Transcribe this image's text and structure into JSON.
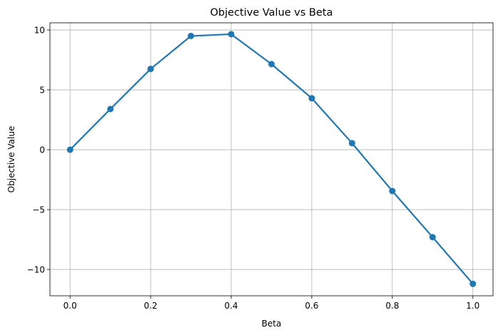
{
  "chart_data": {
    "type": "line",
    "title": "Objective Value vs Beta",
    "xlabel": "Beta",
    "ylabel": "Objective Value",
    "xlim": [
      -0.05,
      1.05
    ],
    "ylim": [
      -12.2,
      10.6
    ],
    "xticks": [
      0.0,
      0.2,
      0.4,
      0.6,
      0.8,
      1.0
    ],
    "xtick_labels": [
      "0.0",
      "0.2",
      "0.4",
      "0.6",
      "0.8",
      "1.0"
    ],
    "yticks": [
      -10,
      -5,
      0,
      5,
      10
    ],
    "ytick_labels": [
      "−10",
      "−5",
      "0",
      "5",
      "10"
    ],
    "grid": true,
    "series": [
      {
        "color": "#1f77b4",
        "marker": "circle",
        "x": [
          0.0,
          0.1,
          0.2,
          0.3,
          0.4,
          0.5,
          0.6,
          0.7,
          0.8,
          0.9,
          1.0
        ],
        "y": [
          0.0,
          3.4,
          6.75,
          9.5,
          9.65,
          7.15,
          4.3,
          0.55,
          -3.45,
          -7.3,
          -11.2
        ]
      }
    ]
  }
}
